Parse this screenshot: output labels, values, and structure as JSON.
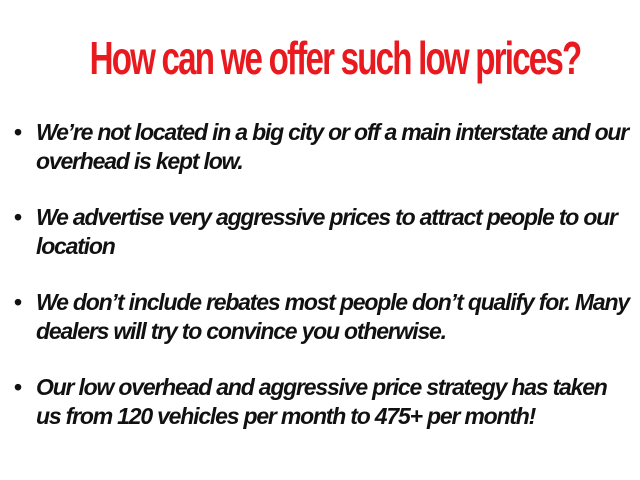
{
  "title": "How can we offer such low prices?",
  "bullets": [
    "We’re not located in a big city or off a main interstate and our overhead is kept low.",
    "We advertise very aggressive prices to attract people to our location",
    "We don’t include rebates most people don’t qualify for. Many dealers will try to convince you otherwise.",
    "Our low overhead and aggressive price strategy has taken us from 120 vehicles per month to 475+ per month!"
  ]
}
